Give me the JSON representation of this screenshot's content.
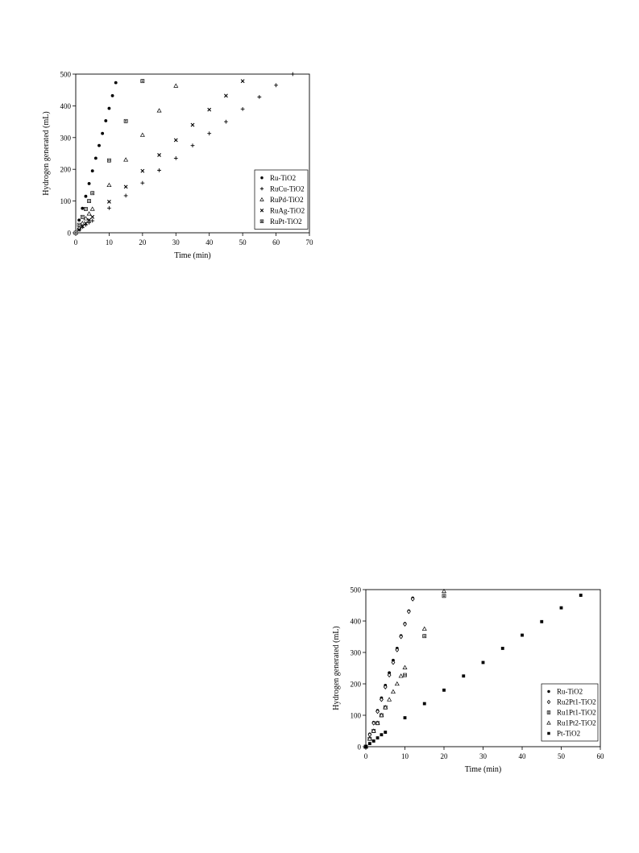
{
  "chart_data": [
    {
      "type": "scatter",
      "xlabel": "Time (min)",
      "ylabel": "Hydrogen generated (mL)",
      "xlim": [
        0,
        70
      ],
      "ylim": [
        0,
        500
      ],
      "xticks": [
        0,
        10,
        20,
        30,
        40,
        50,
        60,
        70
      ],
      "yticks": [
        0,
        100,
        200,
        300,
        400,
        500
      ],
      "legend_position": "right",
      "grid": false,
      "series": [
        {
          "name": "Ru-TiO2",
          "marker": "filled-circle",
          "x": [
            0,
            1,
            2,
            3,
            4,
            5,
            6,
            7,
            8,
            9,
            10,
            11,
            12
          ],
          "y": [
            0,
            40,
            77,
            115,
            155,
            195,
            235,
            275,
            313,
            353,
            392,
            432,
            473
          ]
        },
        {
          "name": "RuCu-TiO2",
          "marker": "plus",
          "x": [
            0,
            1,
            2,
            3,
            4,
            5,
            10,
            15,
            20,
            25,
            30,
            35,
            40,
            45,
            50,
            55,
            60,
            65
          ],
          "y": [
            0,
            10,
            18,
            25,
            32,
            38,
            78,
            117,
            157,
            197,
            235,
            275,
            313,
            350,
            390,
            428,
            465,
            500
          ]
        },
        {
          "name": "RuPd-TiO2",
          "marker": "open-triangle",
          "x": [
            0,
            1,
            2,
            3,
            4,
            5,
            10,
            15,
            20,
            25,
            30
          ],
          "y": [
            0,
            15,
            30,
            45,
            60,
            75,
            150,
            230,
            308,
            385,
            463
          ]
        },
        {
          "name": "RuAg-TiO2",
          "marker": "x",
          "x": [
            0,
            1,
            2,
            3,
            4,
            5,
            10,
            15,
            20,
            25,
            30,
            35,
            40,
            45,
            50
          ],
          "y": [
            0,
            10,
            20,
            30,
            40,
            50,
            98,
            145,
            195,
            245,
            292,
            340,
            388,
            432,
            478
          ]
        },
        {
          "name": "RuPt-TiO2",
          "marker": "open-square",
          "x": [
            0,
            1,
            2,
            3,
            4,
            5,
            10,
            15,
            20
          ],
          "y": [
            0,
            25,
            50,
            75,
            100,
            125,
            228,
            352,
            478
          ]
        }
      ]
    },
    {
      "type": "scatter",
      "xlabel": "Time (min)",
      "ylabel": "Hydrogen generated (mL)",
      "xlim": [
        0,
        60
      ],
      "ylim": [
        0,
        500
      ],
      "xticks": [
        0,
        10,
        20,
        30,
        40,
        50,
        60
      ],
      "yticks": [
        0,
        100,
        200,
        300,
        400,
        500
      ],
      "legend_position": "bottom-right",
      "grid": false,
      "series": [
        {
          "name": "Ru-TiO2",
          "marker": "filled-circle",
          "x": [
            0,
            1,
            2,
            3,
            4,
            5,
            6,
            7,
            8,
            9,
            10,
            11,
            12
          ],
          "y": [
            0,
            40,
            77,
            115,
            155,
            195,
            235,
            275,
            313,
            353,
            392,
            432,
            473
          ]
        },
        {
          "name": "Ru2Pt1-TiO2",
          "marker": "open-diamond",
          "x": [
            0,
            1,
            2,
            3,
            4,
            5,
            6,
            7,
            8,
            9,
            10,
            11,
            12
          ],
          "y": [
            0,
            38,
            75,
            112,
            150,
            190,
            228,
            268,
            308,
            350,
            390,
            430,
            470
          ]
        },
        {
          "name": "Ru1Pt1-TiO2",
          "marker": "open-square",
          "x": [
            0,
            1,
            2,
            3,
            4,
            5,
            10,
            15,
            20
          ],
          "y": [
            0,
            25,
            50,
            75,
            100,
            125,
            228,
            352,
            480
          ]
        },
        {
          "name": "Ru1Pt2-TiO2",
          "marker": "open-triangle",
          "x": [
            0,
            1,
            2,
            3,
            4,
            5,
            6,
            7,
            8,
            9,
            10,
            15,
            20
          ],
          "y": [
            0,
            25,
            50,
            75,
            100,
            125,
            150,
            175,
            200,
            225,
            252,
            375,
            495
          ]
        },
        {
          "name": "Pt-TiO2",
          "marker": "filled-square",
          "x": [
            0,
            1,
            2,
            3,
            4,
            5,
            10,
            15,
            20,
            25,
            30,
            35,
            40,
            45,
            50,
            55
          ],
          "y": [
            0,
            10,
            18,
            28,
            38,
            46,
            92,
            137,
            180,
            225,
            268,
            313,
            355,
            398,
            442,
            482
          ]
        }
      ]
    }
  ]
}
